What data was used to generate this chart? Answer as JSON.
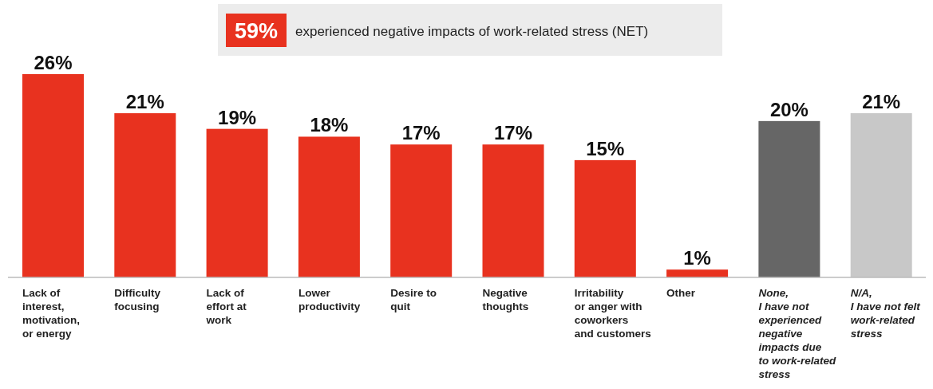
{
  "chart_data": {
    "type": "bar",
    "title": "59% experienced negative impacts of work-related stress (NET)",
    "categories": [
      "Lack of\ninterest,\nmotivation,\nor energy",
      "Difficulty\nfocusing",
      "Lack of\neffort at\nwork",
      "Lower\nproductivity",
      "Desire to\nquit",
      "Negative\nthoughts",
      "Irritability\nor anger with\ncoworkers\nand customers",
      "Other",
      "None,\nI have not\nexperienced\nnegative\nimpacts due\nto work-related\nstress",
      "N/A,\nI have not felt\nwork-related\nstress"
    ],
    "values": [
      26,
      21,
      19,
      18,
      17,
      17,
      15,
      1,
      20,
      21
    ],
    "colors": [
      "#e8321f",
      "#e8321f",
      "#e8321f",
      "#e8321f",
      "#e8321f",
      "#e8321f",
      "#e8321f",
      "#e8321f",
      "#666666",
      "#c8c8c8"
    ],
    "value_labels": [
      "26%",
      "21%",
      "19%",
      "18%",
      "17%",
      "17%",
      "15%",
      "1%",
      "20%",
      "21%"
    ]
  }
}
